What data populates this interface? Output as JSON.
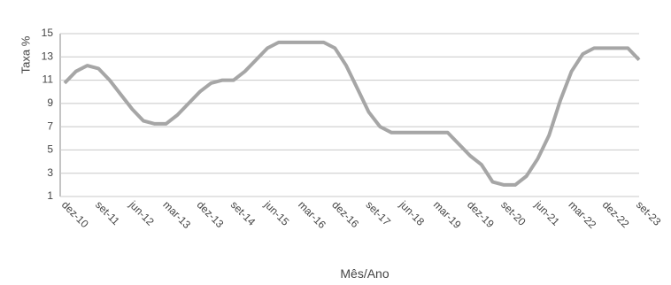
{
  "chart_data": {
    "type": "line",
    "y_label": "Taxa %",
    "x_label": "Mês/Ano",
    "categories": [
      "dez-10",
      null,
      null,
      "set-11",
      null,
      null,
      "jun-12",
      null,
      null,
      "mar-13",
      null,
      null,
      "dez-13",
      null,
      null,
      "set-14",
      null,
      null,
      "jun-15",
      null,
      null,
      "mar-16",
      null,
      null,
      "dez-16",
      null,
      null,
      "set-17",
      null,
      null,
      "jun-18",
      null,
      null,
      "mar-19",
      null,
      null,
      "dez-19",
      null,
      null,
      "set-20",
      null,
      null,
      "jun-21",
      null,
      null,
      "mar-22",
      null,
      null,
      "dez-22",
      null,
      null,
      "set-23"
    ],
    "values": [
      10.75,
      11.75,
      12.25,
      12.0,
      11.0,
      9.75,
      8.5,
      7.5,
      7.25,
      7.25,
      8.0,
      9.0,
      10.0,
      10.75,
      11.0,
      11.0,
      11.75,
      12.75,
      13.75,
      14.25,
      14.25,
      14.25,
      14.25,
      14.25,
      13.75,
      12.25,
      10.25,
      8.25,
      7.0,
      6.5,
      6.5,
      6.5,
      6.5,
      6.5,
      6.5,
      5.5,
      4.5,
      3.75,
      2.25,
      2.0,
      2.0,
      2.75,
      4.25,
      6.25,
      9.25,
      11.75,
      13.25,
      13.75,
      13.75,
      13.75,
      13.75,
      12.75
    ],
    "color": "#a6a6a6",
    "ylim": [
      1,
      15
    ],
    "yticks": [
      1,
      3,
      5,
      7,
      9,
      11,
      13,
      15
    ],
    "grid": true
  }
}
